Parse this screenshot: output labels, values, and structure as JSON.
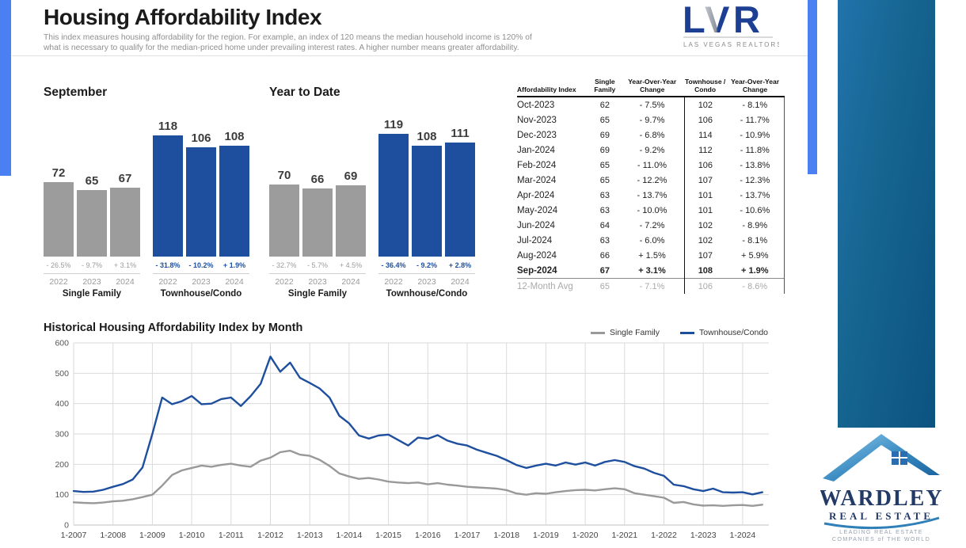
{
  "header": {
    "title": "Housing Affordability Index",
    "description_line1": "This index measures housing affordability for the region. For example, an index of 120 means the median household income is 120% of",
    "description_line2": "what is necessary to qualify for the median-priced home under prevailing interest rates. A higher number means greater affordability.",
    "lvr_logo": {
      "letters": [
        "L",
        "V",
        "R"
      ],
      "subtext": "LAS VEGAS REALTORS®"
    }
  },
  "colors": {
    "bar_gray": "#9c9c9c",
    "bar_blue": "#1e4f9e",
    "line_gray": "#999999",
    "line_blue": "#1e4f9e",
    "gutter_blue": "#4a80f2"
  },
  "chart_data": [
    {
      "type": "bar",
      "title": "September",
      "categories": [
        "2022",
        "2023",
        "2024"
      ],
      "ylim": [
        0,
        130
      ],
      "series": [
        {
          "name": "Single Family",
          "color": "#9c9c9c",
          "values": [
            72,
            65,
            67
          ],
          "changes": [
            "- 26.5%",
            "- 9.7%",
            "+ 3.1%"
          ]
        },
        {
          "name": "Townhouse/Condo",
          "color": "#1e4f9e",
          "values": [
            118,
            106,
            108
          ],
          "changes": [
            "- 31.8%",
            "- 10.2%",
            "+ 1.9%"
          ]
        }
      ]
    },
    {
      "type": "bar",
      "title": "Year to Date",
      "categories": [
        "2022",
        "2023",
        "2024"
      ],
      "ylim": [
        0,
        130
      ],
      "series": [
        {
          "name": "Single Family",
          "color": "#9c9c9c",
          "values": [
            70,
            66,
            69
          ],
          "changes": [
            "- 32.7%",
            "- 5.7%",
            "+ 4.5%"
          ]
        },
        {
          "name": "Townhouse/Condo",
          "color": "#1e4f9e",
          "values": [
            119,
            108,
            111
          ],
          "changes": [
            "- 36.4%",
            "- 9.2%",
            "+ 2.8%"
          ]
        }
      ]
    },
    {
      "type": "line",
      "title": "Historical Housing Affordability Index by Month",
      "ylim": [
        0,
        600
      ],
      "ytick_step": 100,
      "x_start_year": 2007,
      "x_step_years": 0.25,
      "xticks": [
        "1-2007",
        "1-2008",
        "1-2009",
        "1-2010",
        "1-2011",
        "1-2012",
        "1-2013",
        "1-2014",
        "1-2015",
        "1-2016",
        "1-2017",
        "1-2018",
        "1-2019",
        "1-2020",
        "1-2021",
        "1-2022",
        "1-2023",
        "1-2024"
      ],
      "grid": true,
      "legend_position": "top-right",
      "series": [
        {
          "name": "Single Family",
          "color": "#999999",
          "values": [
            75,
            73,
            72,
            74,
            78,
            80,
            85,
            92,
            100,
            130,
            165,
            180,
            188,
            196,
            192,
            198,
            202,
            196,
            192,
            212,
            222,
            240,
            245,
            232,
            228,
            215,
            195,
            170,
            160,
            152,
            155,
            150,
            143,
            140,
            138,
            140,
            134,
            138,
            133,
            130,
            126,
            124,
            122,
            120,
            115,
            104,
            100,
            105,
            103,
            108,
            112,
            115,
            116,
            114,
            118,
            121,
            118,
            105,
            100,
            95,
            90,
            73,
            76,
            68,
            64,
            65,
            63,
            65,
            66,
            63,
            67
          ]
        },
        {
          "name": "Townhouse/Condo",
          "color": "#1e4f9e",
          "values": [
            112,
            109,
            110,
            116,
            126,
            135,
            150,
            190,
            300,
            420,
            398,
            408,
            425,
            398,
            400,
            415,
            420,
            392,
            425,
            465,
            555,
            505,
            535,
            485,
            468,
            450,
            420,
            360,
            335,
            295,
            285,
            295,
            298,
            280,
            262,
            288,
            284,
            296,
            278,
            268,
            262,
            248,
            238,
            228,
            214,
            198,
            188,
            196,
            202,
            196,
            206,
            199,
            206,
            196,
            208,
            214,
            208,
            194,
            186,
            172,
            162,
            133,
            128,
            118,
            112,
            120,
            108,
            107,
            108,
            101,
            108
          ]
        }
      ]
    }
  ],
  "table": {
    "headers": [
      "Affordability Index",
      "Single Family",
      "Year-Over-Year Change",
      "Townhouse / Condo",
      "Year-Over-Year Change"
    ],
    "rows": [
      [
        "Oct-2023",
        "62",
        "- 7.5%",
        "102",
        "- 8.1%"
      ],
      [
        "Nov-2023",
        "65",
        "- 9.7%",
        "106",
        "- 11.7%"
      ],
      [
        "Dec-2023",
        "69",
        "- 6.8%",
        "114",
        "- 10.9%"
      ],
      [
        "Jan-2024",
        "69",
        "- 9.2%",
        "112",
        "- 11.8%"
      ],
      [
        "Feb-2024",
        "65",
        "- 11.0%",
        "106",
        "- 13.8%"
      ],
      [
        "Mar-2024",
        "65",
        "- 12.2%",
        "107",
        "- 12.3%"
      ],
      [
        "Apr-2024",
        "63",
        "- 13.7%",
        "101",
        "- 13.7%"
      ],
      [
        "May-2024",
        "63",
        "- 10.0%",
        "101",
        "- 10.6%"
      ],
      [
        "Jun-2024",
        "64",
        "- 7.2%",
        "102",
        "- 8.9%"
      ],
      [
        "Jul-2024",
        "63",
        "- 6.0%",
        "102",
        "- 8.1%"
      ],
      [
        "Aug-2024",
        "66",
        "+ 1.5%",
        "107",
        "+ 5.9%"
      ],
      [
        "Sep-2024",
        "67",
        "+ 3.1%",
        "108",
        "+ 1.9%"
      ]
    ],
    "bold_row": "Sep-2024",
    "avg_row": [
      "12-Month Avg",
      "65",
      "- 7.1%",
      "106",
      "- 8.6%"
    ]
  },
  "branding": {
    "wardley": {
      "name": "WARDLEY",
      "subname": "REAL ESTATE",
      "tagline_line1": "LEADING REAL ESTATE",
      "tagline_line2": "COMPANIES of THE WORLD"
    }
  }
}
